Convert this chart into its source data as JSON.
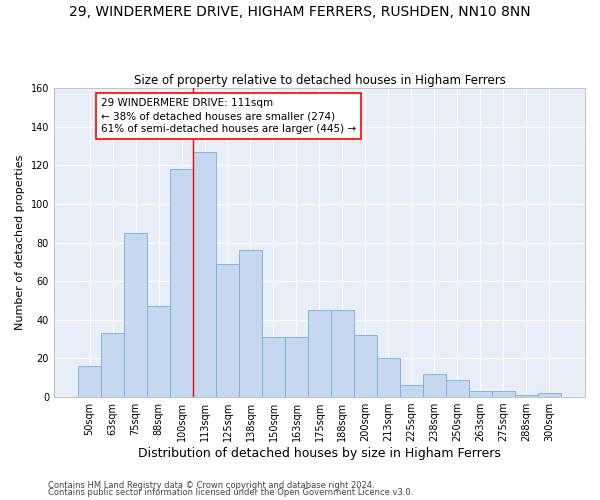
{
  "title": "29, WINDERMERE DRIVE, HIGHAM FERRERS, RUSHDEN, NN10 8NN",
  "subtitle": "Size of property relative to detached houses in Higham Ferrers",
  "xlabel": "Distribution of detached houses by size in Higham Ferrers",
  "ylabel": "Number of detached properties",
  "categories": [
    "50sqm",
    "63sqm",
    "75sqm",
    "88sqm",
    "100sqm",
    "113sqm",
    "125sqm",
    "138sqm",
    "150sqm",
    "163sqm",
    "175sqm",
    "188sqm",
    "200sqm",
    "213sqm",
    "225sqm",
    "238sqm",
    "250sqm",
    "263sqm",
    "275sqm",
    "288sqm",
    "300sqm"
  ],
  "values": [
    16,
    33,
    85,
    47,
    118,
    127,
    69,
    76,
    31,
    31,
    45,
    45,
    32,
    20,
    6,
    12,
    9,
    3,
    3,
    1,
    2
  ],
  "bar_color": "#c5d8f0",
  "bar_edge_color": "#7aadd4",
  "red_line_index": 5,
  "annotation_line1": "29 WINDERMERE DRIVE: 111sqm",
  "annotation_line2": "← 38% of detached houses are smaller (274)",
  "annotation_line3": "61% of semi-detached houses are larger (445) →",
  "ylim": [
    0,
    160
  ],
  "yticks": [
    0,
    20,
    40,
    60,
    80,
    100,
    120,
    140,
    160
  ],
  "footnote1": "Contains HM Land Registry data © Crown copyright and database right 2024.",
  "footnote2": "Contains public sector information licensed under the Open Government Licence v3.0.",
  "fig_background": "#ffffff",
  "ax_background": "#e8eef8",
  "grid_color": "#ffffff",
  "title_fontsize": 10,
  "subtitle_fontsize": 8.5,
  "xlabel_fontsize": 9,
  "ylabel_fontsize": 8,
  "tick_fontsize": 7,
  "annotation_fontsize": 7.5,
  "footnote_fontsize": 6
}
